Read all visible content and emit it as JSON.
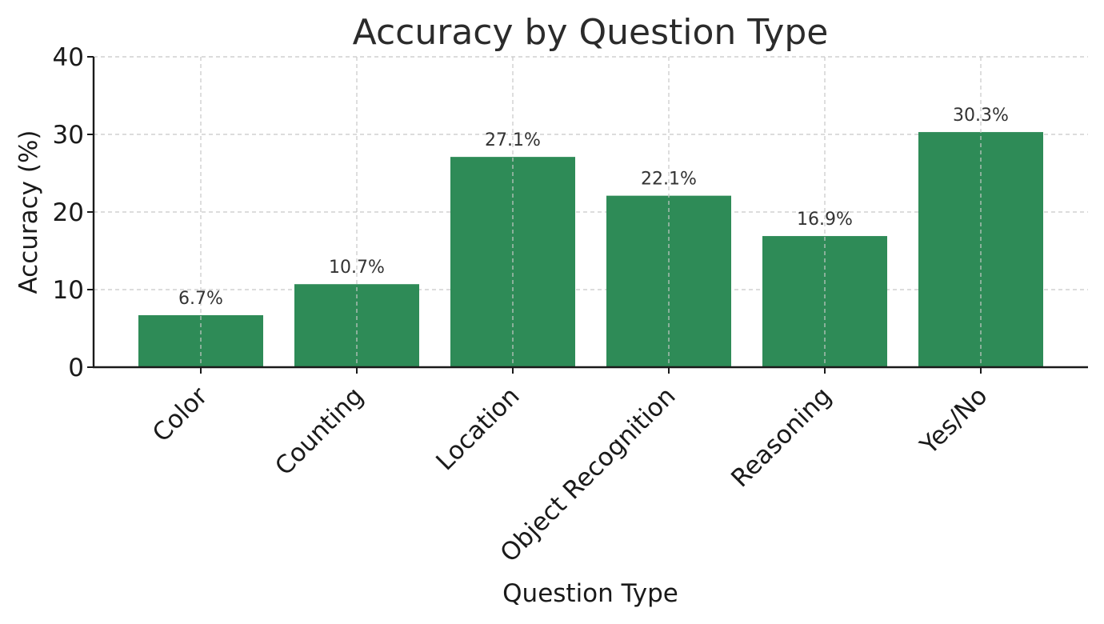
{
  "chart_data": {
    "type": "bar",
    "title": "Accuracy by Question Type",
    "xlabel": "Question Type",
    "ylabel": "Accuracy (%)",
    "categories": [
      "Color",
      "Counting",
      "Location",
      "Object Recognition",
      "Reasoning",
      "Yes/No"
    ],
    "values": [
      6.7,
      10.7,
      27.1,
      22.1,
      16.9,
      30.3
    ],
    "data_labels": [
      "6.7%",
      "10.7%",
      "27.1%",
      "22.1%",
      "16.9%",
      "30.3%"
    ],
    "ylim": [
      0,
      40
    ],
    "yticks": [
      0,
      10,
      20,
      30,
      40
    ],
    "grid": true,
    "bar_color": "#2e8b57"
  }
}
